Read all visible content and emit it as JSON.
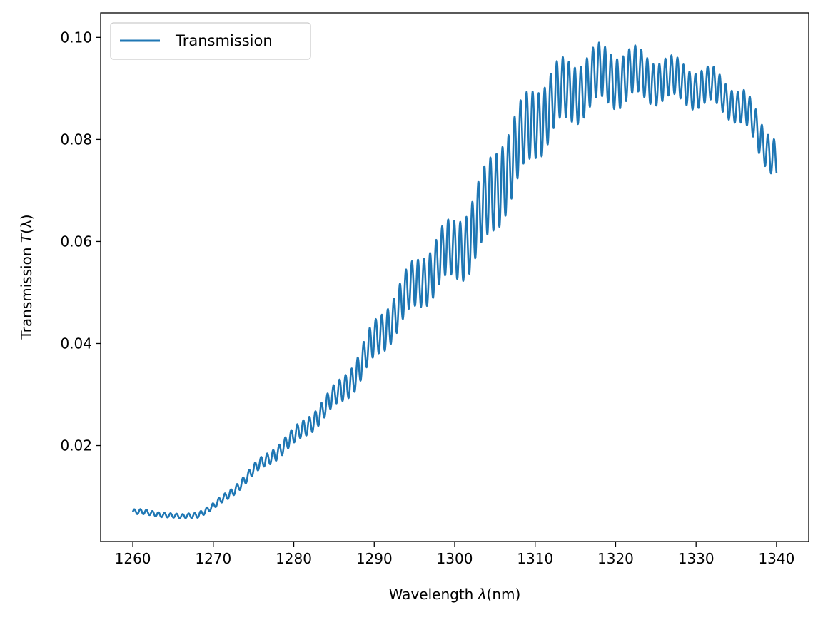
{
  "colors": {
    "series": "#1f77b4",
    "axes": "#000000",
    "background": "#ffffff",
    "legend_border": "#cccccc"
  },
  "chart_data": {
    "type": "line",
    "title": "",
    "xlabel": "Wavelength",
    "xlabel_symbol": "λ",
    "xlabel_unit": "(nm)",
    "ylabel": "Transmission",
    "ylabel_symbol": "T",
    "ylabel_arg": "(λ)",
    "xlim": [
      1256,
      1344
    ],
    "ylim": [
      0.0012,
      0.1048
    ],
    "xticks": [
      1260,
      1270,
      1280,
      1290,
      1300,
      1310,
      1320,
      1330,
      1340
    ],
    "xtick_labels": [
      "1260",
      "1270",
      "1280",
      "1290",
      "1300",
      "1310",
      "1320",
      "1330",
      "1340"
    ],
    "yticks": [
      0.02,
      0.04,
      0.06,
      0.08,
      0.1
    ],
    "ytick_labels": [
      "0.02",
      "0.04",
      "0.06",
      "0.08",
      "0.10"
    ],
    "grid": false,
    "legend": {
      "position": "top-left"
    },
    "series": [
      {
        "name": "Transmission",
        "oscillation": {
          "period_nm": 0.75,
          "envelope": {
            "x": [
              1260,
              1266,
              1270,
              1275,
              1280,
              1285,
              1290,
              1295,
              1300,
              1305,
              1310,
              1315,
              1320,
              1325,
              1330,
              1335,
              1338,
              1340
            ],
            "amplitude": [
              0.0005,
              0.0004,
              0.0006,
              0.001,
              0.0015,
              0.002,
              0.0035,
              0.0045,
              0.0055,
              0.0075,
              0.0065,
              0.0055,
              0.005,
              0.004,
              0.0035,
              0.003,
              0.0035,
              0.0035
            ]
          }
        },
        "baseline": {
          "x": [
            1260,
            1262,
            1264,
            1266,
            1268,
            1270,
            1272,
            1274,
            1276,
            1278,
            1280,
            1282,
            1284,
            1286,
            1288,
            1290,
            1292,
            1294,
            1296,
            1298,
            1300,
            1302,
            1304,
            1306,
            1308,
            1310,
            1312,
            1314,
            1316,
            1318,
            1320,
            1322,
            1324,
            1326,
            1328,
            1330,
            1332,
            1334,
            1336,
            1338,
            1340
          ],
          "y": [
            0.007,
            0.0068,
            0.0065,
            0.006,
            0.0065,
            0.008,
            0.0105,
            0.0135,
            0.0165,
            0.019,
            0.0215,
            0.0245,
            0.0275,
            0.031,
            0.035,
            0.04,
            0.045,
            0.049,
            0.053,
            0.056,
            0.058,
            0.062,
            0.066,
            0.074,
            0.078,
            0.084,
            0.087,
            0.089,
            0.091,
            0.092,
            0.0925,
            0.0925,
            0.092,
            0.092,
            0.091,
            0.0905,
            0.09,
            0.088,
            0.086,
            0.08,
            0.077
          ]
        }
      }
    ]
  }
}
